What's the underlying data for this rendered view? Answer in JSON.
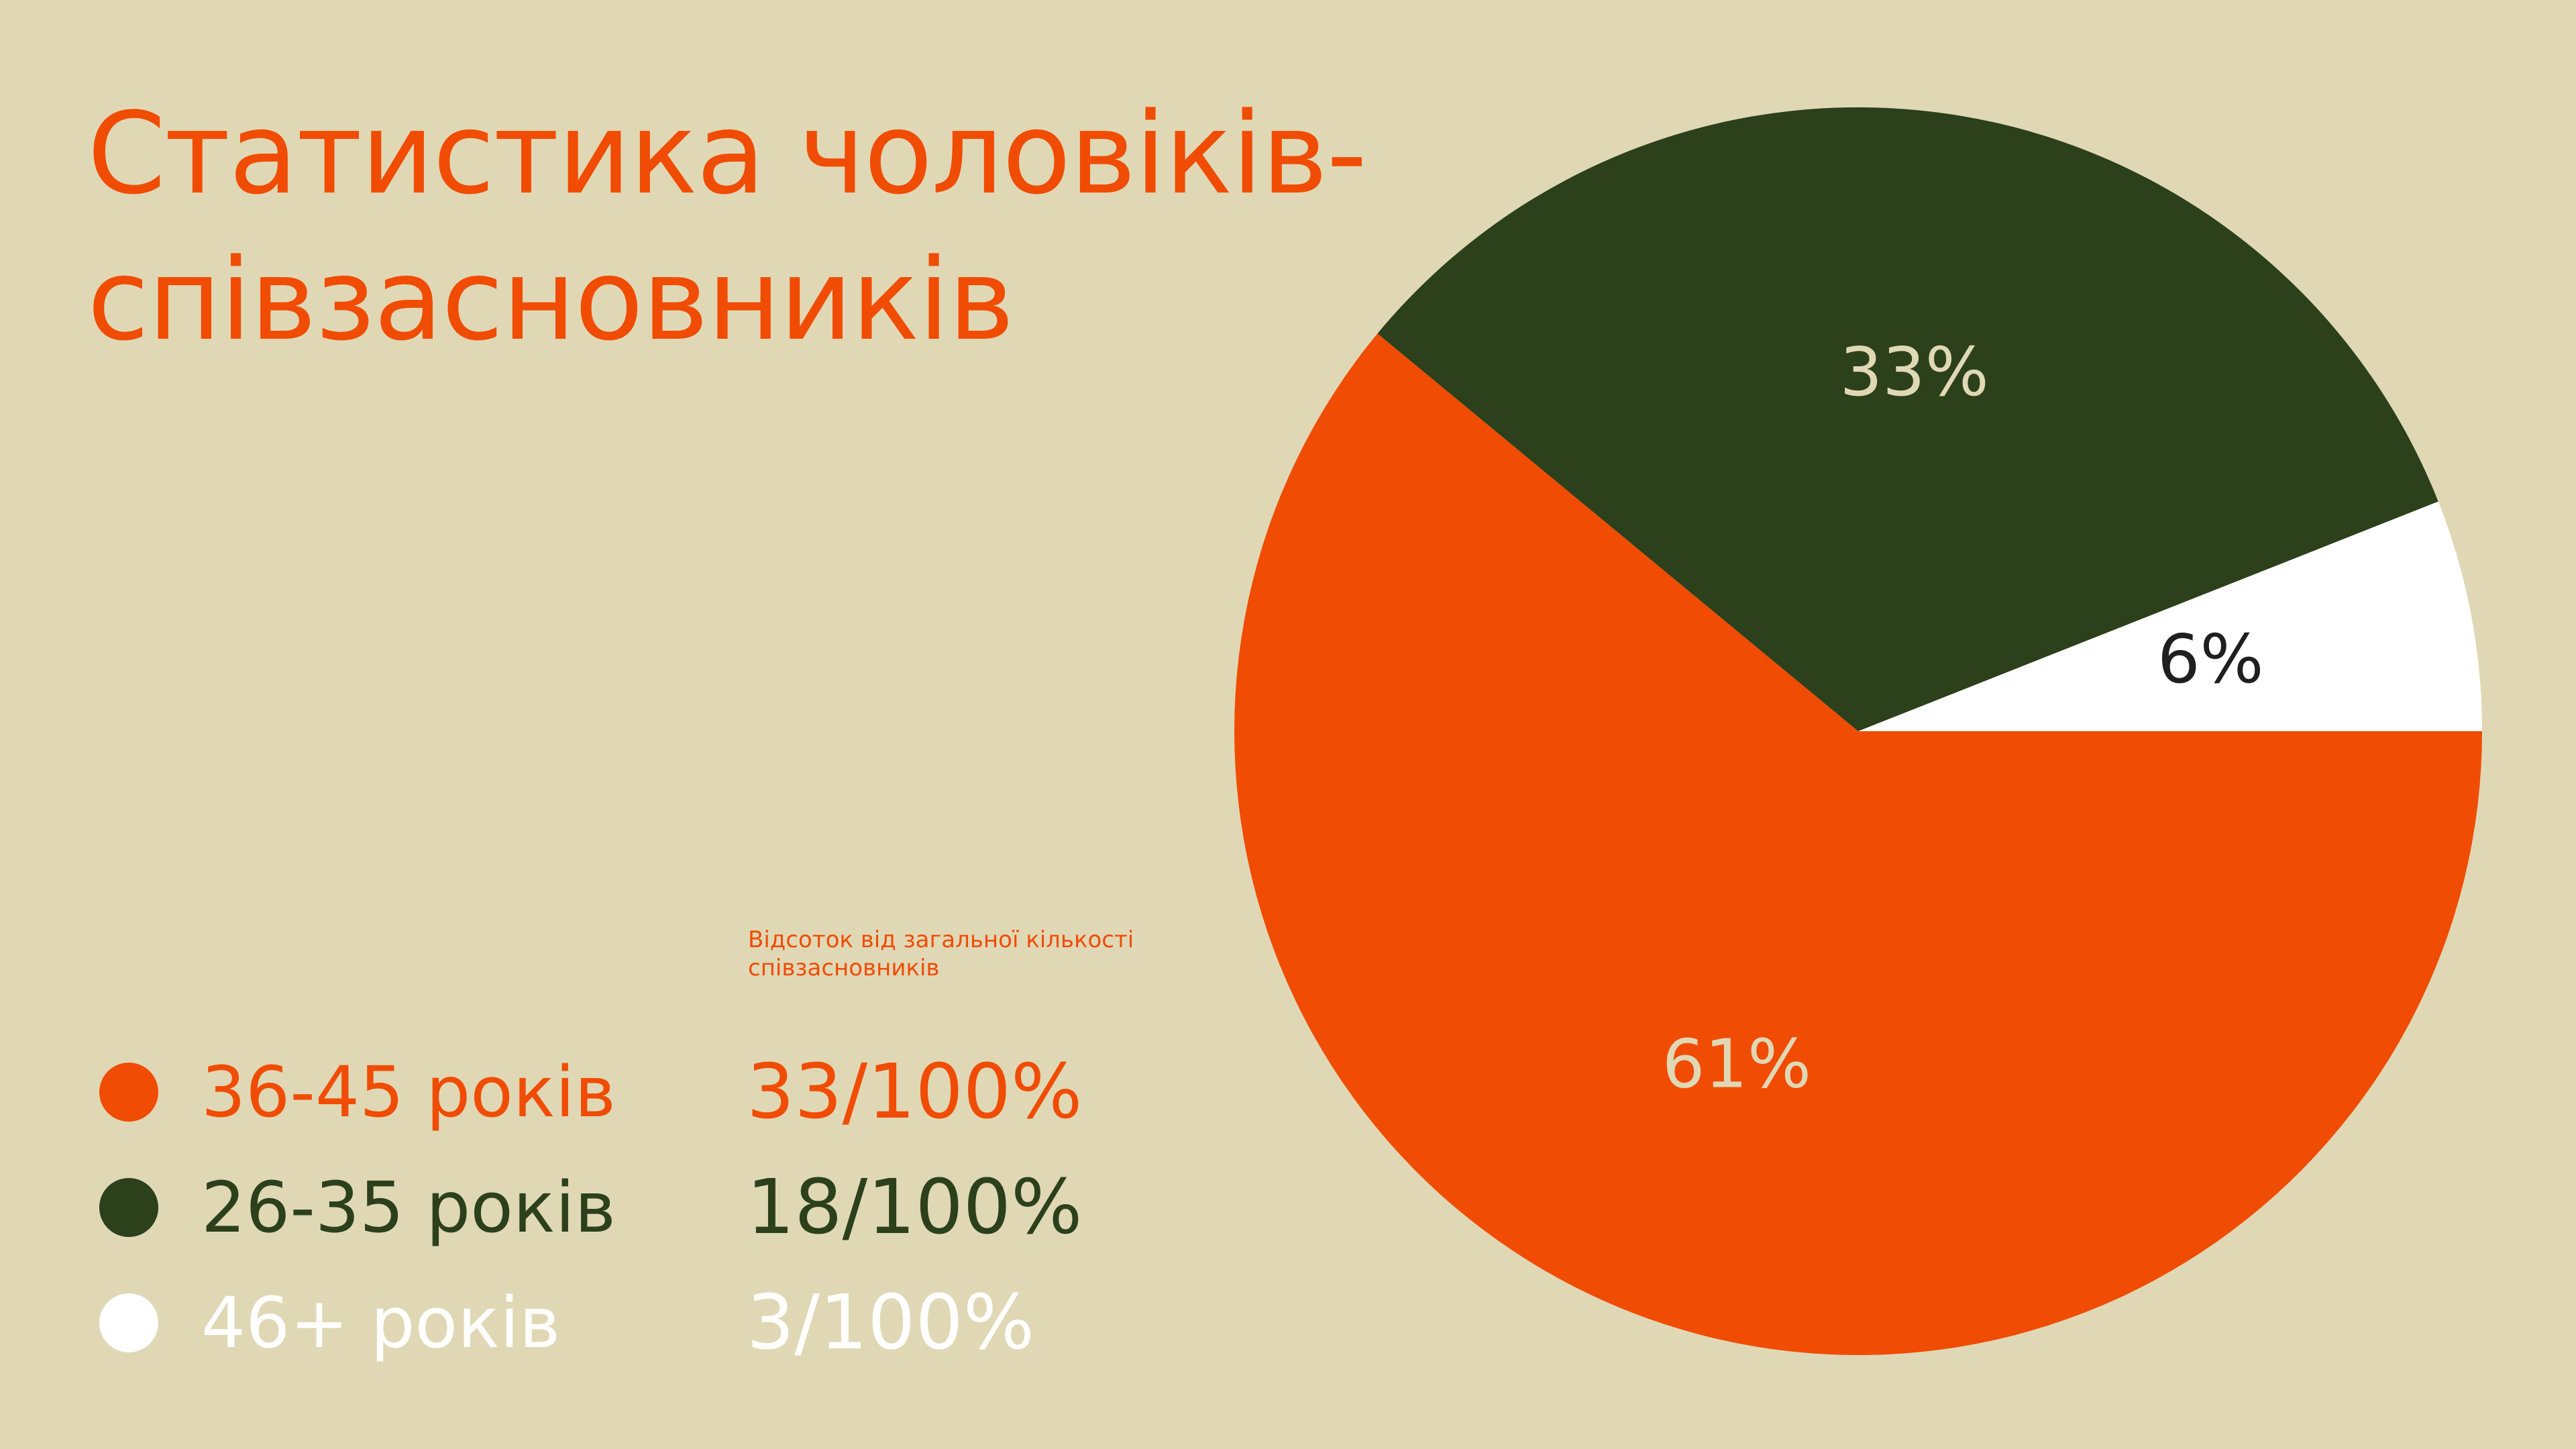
{
  "title": "Статистика чоловіків-співзасновників",
  "legend_note": "Відсоток від загальної кількості співзасновників",
  "colors": {
    "background": "#e0d8b5",
    "accent": "#f04c04",
    "dark_green": "#2b401b",
    "white": "#ffffff",
    "cream_text": "#e0d8b5",
    "dark_text": "#1f1f1f"
  },
  "legend": [
    {
      "label": "36-45 років",
      "value_text": "33/100%",
      "color": "#f04c04",
      "text_color": "#f04c04"
    },
    {
      "label": "26-35 років",
      "value_text": "18/100%",
      "color": "#2b401b",
      "text_color": "#2b401b"
    },
    {
      "label": "46+ років",
      "value_text": "3/100%",
      "color": "#ffffff",
      "text_color": "#ffffff"
    }
  ],
  "chart_data": {
    "type": "pie",
    "title": "Статистика чоловіків-співзасновників",
    "slices": [
      {
        "name": "36-45 років",
        "value": 61,
        "label": "61%",
        "color": "#f04c04",
        "label_color": "#e0d8b5"
      },
      {
        "name": "26-35 років",
        "value": 33,
        "label": "33%",
        "color": "#2b401b",
        "label_color": "#e0d8b5"
      },
      {
        "name": "46+ років",
        "value": 6,
        "label": "6%",
        "color": "#ffffff",
        "label_color": "#1f1f1f"
      }
    ]
  }
}
